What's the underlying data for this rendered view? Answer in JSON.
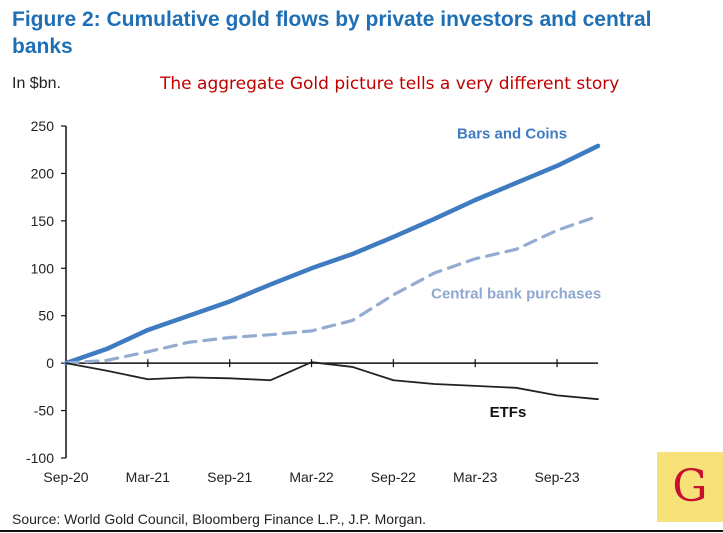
{
  "header": {
    "title": "Figure 2: Cumulative gold flows by private investors and central banks",
    "unit": "In $bn.",
    "annotation": "The aggregate Gold picture tells a very different story"
  },
  "footer": {
    "source": "Source: World Gold Council, Bloomberg Finance L.P., J.P. Morgan."
  },
  "logo": {
    "letter": "G",
    "bg_color": "#f7e27a",
    "letter_color": "#c8102e"
  },
  "chart_data": {
    "type": "line",
    "title": "Figure 2: Cumulative gold flows by private investors and central banks",
    "ylabel": "In $bn.",
    "ylim": [
      -100,
      250
    ],
    "yticks": [
      250,
      200,
      150,
      100,
      50,
      0,
      -50,
      -100
    ],
    "xlim": [
      0,
      13
    ],
    "x": [
      0,
      1,
      2,
      3,
      4,
      5,
      6,
      7,
      8,
      9,
      10,
      11,
      12,
      13
    ],
    "xtick_labels": [
      "Sep-20",
      "Mar-21",
      "Sep-21",
      "Mar-22",
      "Sep-22",
      "Mar-23",
      "Sep-23"
    ],
    "xtick_positions": [
      0,
      2,
      4,
      6,
      8,
      10,
      12
    ],
    "grid": false,
    "series": [
      {
        "name": "Bars and Coins",
        "color": "#3f7bc0",
        "dash": "solid",
        "values": [
          0,
          15,
          35,
          50,
          65,
          83,
          100,
          115,
          133,
          152,
          172,
          190,
          208,
          229
        ]
      },
      {
        "name": "Central bank purchases",
        "color": "#93acd0",
        "dash": "dashed",
        "values": [
          0,
          3,
          12,
          22,
          27,
          30,
          34,
          45,
          72,
          95,
          110,
          120,
          140,
          155
        ]
      },
      {
        "name": "ETFs",
        "color": "#222222",
        "dash": "solid",
        "values": [
          0,
          -8,
          -17,
          -15,
          -16,
          -18,
          1,
          -4,
          -18,
          -22,
          -24,
          -26,
          -34,
          -38
        ]
      }
    ]
  }
}
